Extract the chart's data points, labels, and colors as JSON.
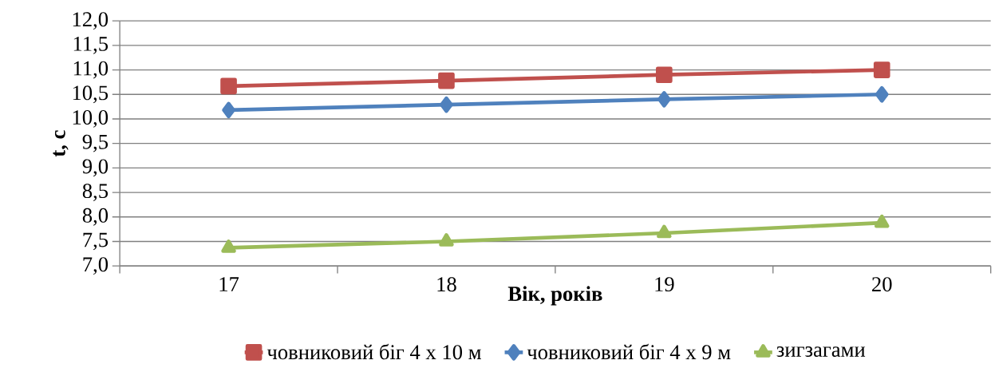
{
  "chart_data": {
    "type": "line",
    "xlabel": "Вік, років",
    "ylabel": "t, c",
    "categories": [
      "17",
      "18",
      "19",
      "20"
    ],
    "series": [
      {
        "name": "човниковий біг 4 х 10 м",
        "color": "#c0504d",
        "marker": "square",
        "values": [
          10.67,
          10.78,
          10.9,
          11.0
        ]
      },
      {
        "name": "човниковий біг 4 х 9 м",
        "color": "#4f81bd",
        "marker": "diamond",
        "values": [
          10.18,
          10.29,
          10.4,
          10.5
        ]
      },
      {
        "name": "зигзагами",
        "color": "#9bbb59",
        "marker": "triangle",
        "values": [
          7.37,
          7.5,
          7.67,
          7.88
        ]
      }
    ],
    "ylim": [
      7,
      12
    ],
    "yticks": [
      {
        "value": 7,
        "label": "7,0"
      },
      {
        "value": 7.5,
        "label": "7,5"
      },
      {
        "value": 8,
        "label": "8,0"
      },
      {
        "value": 8.5,
        "label": "8,5"
      },
      {
        "value": 9,
        "label": "9,0"
      },
      {
        "value": 9.5,
        "label": "9,5"
      },
      {
        "value": 10,
        "label": "10,0"
      },
      {
        "value": 10.5,
        "label": "10,5"
      },
      {
        "value": 11,
        "label": "11,0"
      },
      {
        "value": 11.5,
        "label": "11,5"
      },
      {
        "value": 12,
        "label": "12,0"
      }
    ],
    "grid": "y",
    "legend": "bottom",
    "line_style": "solid"
  }
}
